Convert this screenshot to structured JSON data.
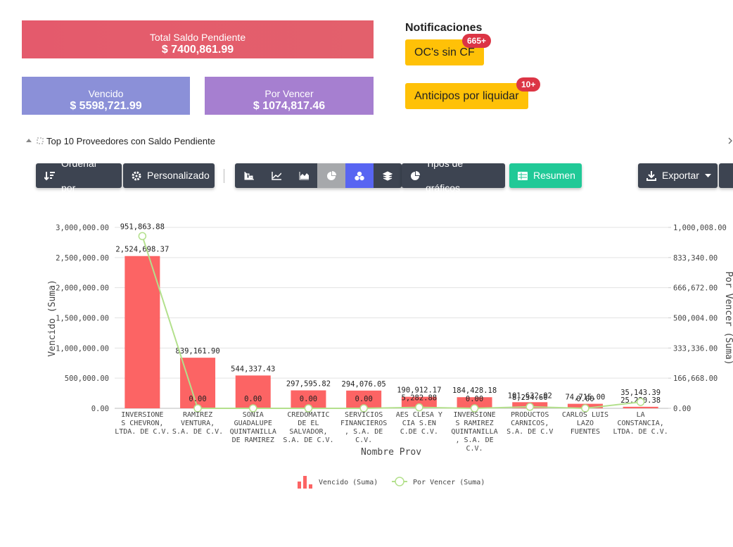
{
  "cards": {
    "total": {
      "label": "Total Saldo Pendiente",
      "value": "$ 7400,861.99"
    },
    "vencido": {
      "label": "Vencido",
      "value": "$ 5598,721.99"
    },
    "por_vencer": {
      "label": "Por Vencer",
      "value": "$ 1074,817.46"
    }
  },
  "notifications": {
    "title": "Notificaciones",
    "items": [
      {
        "label": "OC's sin CF",
        "badge": "665+"
      },
      {
        "label": "Anticipos por liquidar",
        "badge": "10+"
      }
    ]
  },
  "panel": {
    "title": "Top 10 Proveedores con Saldo Pendiente"
  },
  "toolbar": {
    "sort": "Ordenar por",
    "custom": "Personalizado",
    "chart_types": "Tipos de gráficos",
    "summary": "Resumen",
    "export": "Exportar"
  },
  "chart_data": {
    "type": "combo",
    "x_label": "Nombre Prov",
    "y_label": "Vencido (Suma)",
    "y2_label": "Por Vencer (Suma)",
    "categories": [
      "INVERSIONE\nS CHEVRON,\nLTDA. DE C.V.",
      "RAMIREZ\nVENTURA,\nS.A. DE C.V.",
      "SONIA\nGUADALUPE\nQUINTANILLA\nDE RAMIREZ",
      "CREDOMATIC\nDE EL\nSALVADOR,\nS.A. DE C.V.",
      "SERVICIOS\nFINANCIEROS\n, S.A. DE C.V.",
      "AES CLESA Y\nCIA S.EN\nC.DE C.V.",
      "INVERSIONE\nS RAMIREZ\nQUINTANILLA\n, S.A. DE C.V.",
      "PRODUCTOS\nCARNICOS,\nS.A. DE C.V",
      "CARLOS LUIS\nLAZO\nFUENTES",
      "LA\nCONSTANCIA,\nLTDA. DE C.V."
    ],
    "series": [
      {
        "name": "Vencido (Suma)",
        "type": "bar",
        "color": "#fc6464",
        "values": [
          2524698.37,
          839161.9,
          544337.43,
          297595.82,
          294076.05,
          190912.17,
          184428.18,
          101632.02,
          74715.0,
          25220.38
        ],
        "value_labels": [
          "2,524,698.37",
          "839,161.90",
          "544,337.43",
          "297,595.82",
          "294,076.05",
          "190,912.17",
          "184,428.18",
          "101,632.02",
          "74,715.00",
          "25,220.38"
        ]
      },
      {
        "name": "Por Vencer (Suma)",
        "type": "line",
        "axis": "y2",
        "color": "#b3e08c",
        "values": [
          951863.88,
          0,
          0,
          0,
          0,
          5282.88,
          0,
          8234.6,
          0,
          35143.39
        ],
        "value_labels": [
          "951,863.88",
          "0.00",
          "0.00",
          "0.00",
          "0.00",
          "5,282.88",
          "0.00",
          "8,234.60",
          "0.00",
          "35,143.39"
        ]
      }
    ],
    "ylim": [
      0,
      3000000
    ],
    "yticks": [
      {
        "value": 0,
        "label": "0.00"
      },
      {
        "value": 500000,
        "label": "500,000.00"
      },
      {
        "value": 1000000,
        "label": "1,000,000.00"
      },
      {
        "value": 1500000,
        "label": "1,500,000.00"
      },
      {
        "value": 2000000,
        "label": "2,000,000.00"
      },
      {
        "value": 2500000,
        "label": "2,500,000.00"
      },
      {
        "value": 3000000,
        "label": "3,000,000.00"
      }
    ],
    "y2lim": [
      0,
      1000008
    ],
    "y2ticks": [
      {
        "value": 0,
        "label": "0.00"
      },
      {
        "value": 166668,
        "label": "166,668.00"
      },
      {
        "value": 333336,
        "label": "333,336.00"
      },
      {
        "value": 500004,
        "label": "500,004.00"
      },
      {
        "value": 666672,
        "label": "666,672.00"
      },
      {
        "value": 833340,
        "label": "833,340.00"
      },
      {
        "value": 1000008,
        "label": "1,000,008.00"
      }
    ],
    "grid": true
  }
}
